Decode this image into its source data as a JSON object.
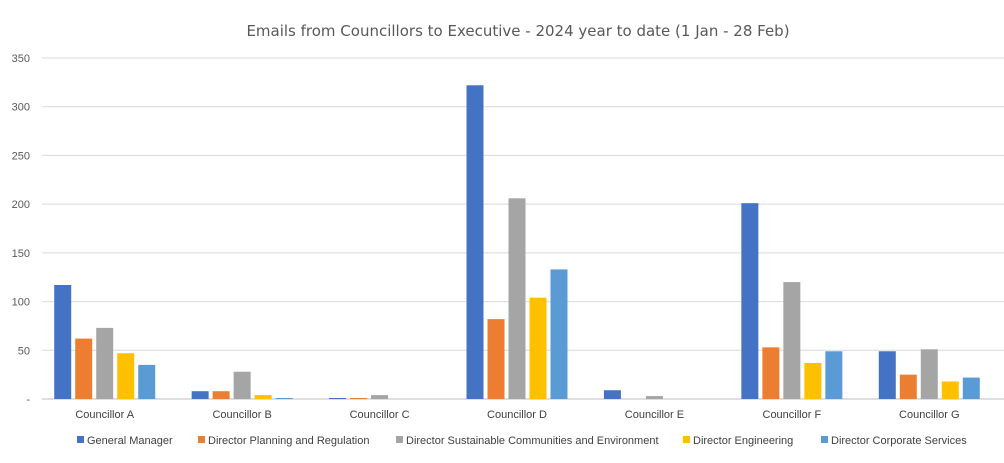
{
  "chart_data": {
    "type": "bar",
    "title": "Emails from Councillors to Executive - 2024 year to date (1 Jan - 28 Feb)",
    "xlabel": "",
    "ylabel": "",
    "ylim": [
      0,
      350
    ],
    "yticks": [
      0,
      50,
      100,
      150,
      200,
      250,
      300,
      350
    ],
    "ytick_labels": [
      "-",
      "50",
      "100",
      "150",
      "200",
      "250",
      "300",
      "350"
    ],
    "grid": true,
    "legend_position": "bottom",
    "categories": [
      "Councillor A",
      "Councillor B",
      "Councillor C",
      "Councillor D",
      "Councillor E",
      "Councillor F",
      "Councillor G"
    ],
    "series": [
      {
        "name": "General Manager",
        "color": "#4472C4",
        "values": [
          117,
          8,
          1,
          322,
          9,
          201,
          49
        ]
      },
      {
        "name": "Director Planning and Regulation",
        "color": "#ED7D31",
        "values": [
          62,
          8,
          1,
          82,
          0,
          53,
          25
        ]
      },
      {
        "name": "Director Sustainable Communities and Environment",
        "color": "#A5A5A5",
        "values": [
          73,
          28,
          4,
          206,
          3,
          120,
          51
        ]
      },
      {
        "name": "Director Engineering",
        "color": "#FFC000",
        "values": [
          47,
          4,
          0,
          104,
          0,
          37,
          18
        ]
      },
      {
        "name": "Director Corporate Services",
        "color": "#5B9BD5",
        "values": [
          35,
          1,
          0,
          133,
          0,
          49,
          22
        ]
      }
    ]
  }
}
